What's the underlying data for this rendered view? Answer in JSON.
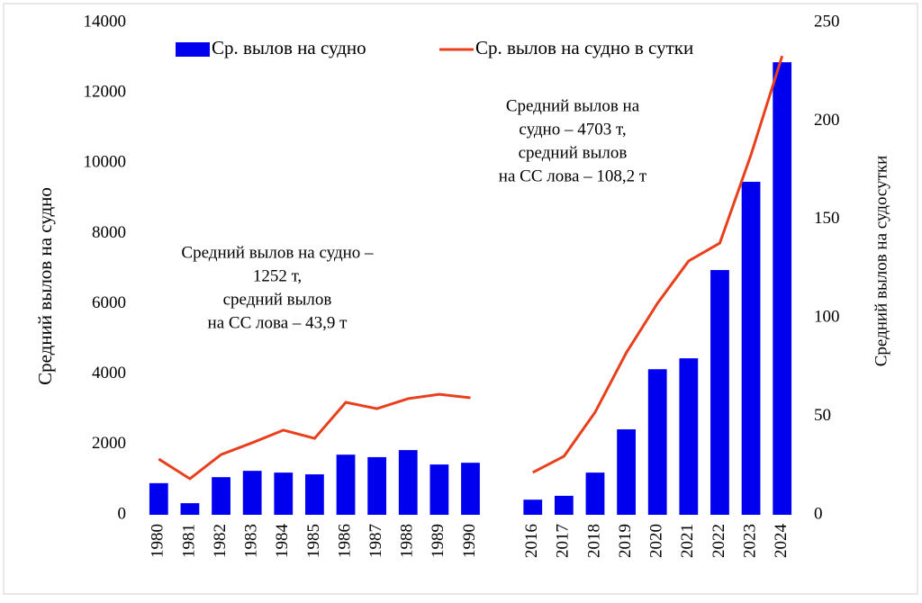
{
  "chart_data": {
    "type": "bar_line",
    "categories": [
      "1980",
      "1981",
      "1982",
      "1983",
      "1984",
      "1985",
      "1986",
      "1987",
      "1988",
      "1989",
      "1990",
      null,
      "2016",
      "2017",
      "2018",
      "2019",
      "2020",
      "2021",
      "2022",
      "2023",
      "2024"
    ],
    "series": [
      {
        "name": "Ср. вылов на судно",
        "type": "bar",
        "color": "#0000ee",
        "values": [
          900,
          330,
          1070,
          1250,
          1200,
          1150,
          1710,
          1640,
          1840,
          1430,
          1480,
          null,
          430,
          540,
          1200,
          2430,
          4140,
          4450,
          6960,
          9470,
          12870
        ]
      },
      {
        "name": "Ср. вылов на судно в сутки",
        "type": "line",
        "axis": "y2",
        "color": "#e8401c",
        "values": [
          28.3,
          18.3,
          30.6,
          36.6,
          43,
          38.8,
          57.1,
          53.9,
          59,
          61.2,
          59.4,
          null,
          21.5,
          29.7,
          52.1,
          82.3,
          107.4,
          128.9,
          138,
          182.8,
          233
        ]
      }
    ],
    "ylabel": "Средний вылов на судно",
    "y2label": "Средний вылов на судосутки",
    "ylim": [
      0,
      14000
    ],
    "yticks": [
      0,
      2000,
      4000,
      6000,
      8000,
      10000,
      12000,
      14000
    ],
    "y2lim": [
      0,
      250
    ],
    "y2ticks": [
      0,
      50,
      100,
      150,
      200,
      250
    ],
    "annotations": [
      [
        "Средний вылов на судно –",
        "1252 т,",
        "средний вылов",
        "на СС лова – 43,9 т"
      ],
      [
        "Средний вылов на",
        "судно – 4703 т,",
        "средний вылов",
        "на СС лова – 108,2 т"
      ]
    ],
    "legend": "top"
  }
}
